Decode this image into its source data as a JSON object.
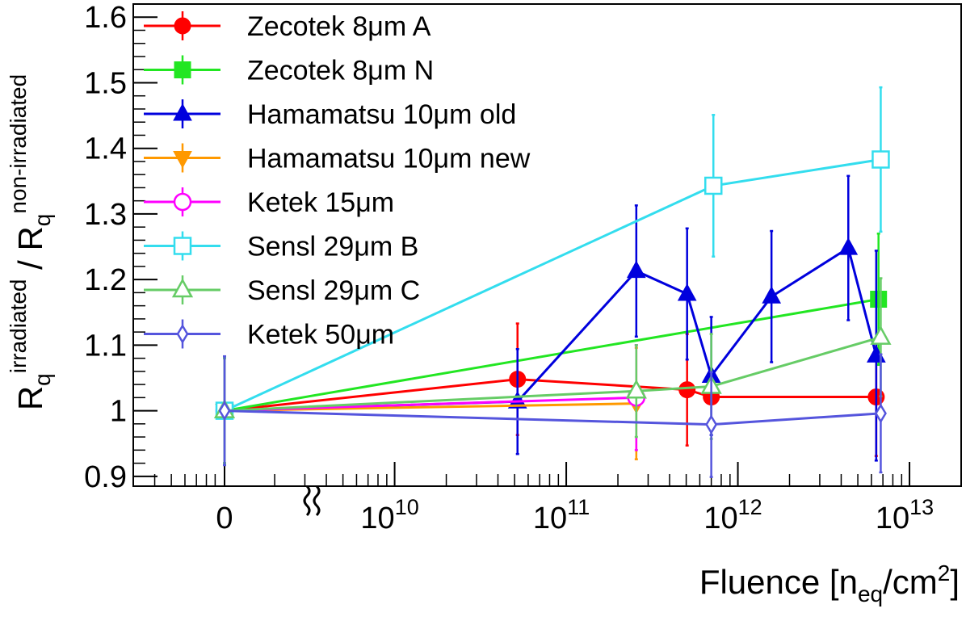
{
  "chart_data": {
    "type": "line",
    "xlabel_parts": [
      "Fluence [n",
      "eq",
      "/cm",
      "2",
      "]"
    ],
    "ylabel_parts": [
      "R",
      "q",
      "irradiated",
      " / R",
      "q",
      "non-irradiated"
    ],
    "log_x": true,
    "xlim": [
      300000000,
      20000000000000
    ],
    "ylim": [
      0.885,
      1.62
    ],
    "xticks": [
      0,
      {
        "value": 10000000000,
        "label": "10",
        "exponent": "10"
      },
      {
        "value": 100000000000,
        "label": "10",
        "exponent": "11"
      },
      {
        "value": 1000000000000,
        "label": "10",
        "exponent": "12"
      },
      {
        "value": 10000000000000,
        "label": "10",
        "exponent": "13"
      }
    ],
    "yticks": [
      0.9,
      1,
      1.1,
      1.2,
      1.3,
      1.4,
      1.5,
      1.6
    ],
    "legend": "top-left",
    "series": [
      {
        "name": "Zecotek 8μm A",
        "color": "#ff0000",
        "marker": "circle",
        "x": [
          0,
          52000000000,
          506000000000,
          700000000000,
          6400000000000
        ],
        "values": [
          1,
          1.048,
          1.032,
          1.021,
          1.021
        ],
        "errors": [
          0.08,
          0.085,
          0.085,
          0.01,
          0.09
        ]
      },
      {
        "name": "Zecotek 8μm N",
        "color": "#22e622",
        "marker": "square",
        "x": [
          0,
          6600000000000
        ],
        "values": [
          1,
          1.17
        ],
        "errors": [
          0.08,
          0.1
        ]
      },
      {
        "name": "Hamamatsu 10μm old",
        "color": "#0000dd",
        "marker": "triangle-up",
        "x": [
          0,
          52000000000,
          256000000000,
          506000000000,
          700000000000,
          1570000000000,
          4400000000000,
          6400000000000
        ],
        "values": [
          1,
          1.014,
          1.213,
          1.178,
          1.053,
          1.174,
          1.248,
          1.084
        ],
        "errors": [
          0.08,
          0.08,
          0.1,
          0.1,
          0.09,
          0.1,
          0.11,
          0.16
        ]
      },
      {
        "name": "Hamamatsu 10μm new",
        "color": "#ff9900",
        "marker": "triangle-down",
        "x": [
          0,
          256000000000
        ],
        "values": [
          1,
          1.011
        ],
        "errors": [
          0.08,
          0.085
        ]
      },
      {
        "name": "Ketek 15μm",
        "color": "#ff00ff",
        "marker": "open-circle",
        "x": [
          0,
          256000000000
        ],
        "values": [
          1,
          1.02
        ],
        "errors": [
          0.08,
          0.08
        ]
      },
      {
        "name": "Sensl 29μm B",
        "color": "#33ddee",
        "marker": "open-square",
        "x": [
          0,
          720000000000,
          6800000000000
        ],
        "values": [
          1,
          1.343,
          1.383
        ],
        "errors": [
          0.08,
          0.108,
          0.11
        ]
      },
      {
        "name": "Sensl 29μm C",
        "color": "#66cc66",
        "marker": "open-triangle",
        "x": [
          0,
          256000000000,
          700000000000,
          6800000000000
        ],
        "values": [
          1,
          1.03,
          1.037,
          1.112
        ],
        "errors": [
          0.08,
          0.07,
          0.08,
          0.09
        ]
      },
      {
        "name": "Ketek 50μm",
        "color": "#5555dd",
        "marker": "open-diamond",
        "x": [
          0,
          700000000000,
          6800000000000
        ],
        "values": [
          1,
          0.979,
          0.996
        ],
        "errors": [
          0.083,
          0.08,
          0.09
        ]
      }
    ]
  }
}
